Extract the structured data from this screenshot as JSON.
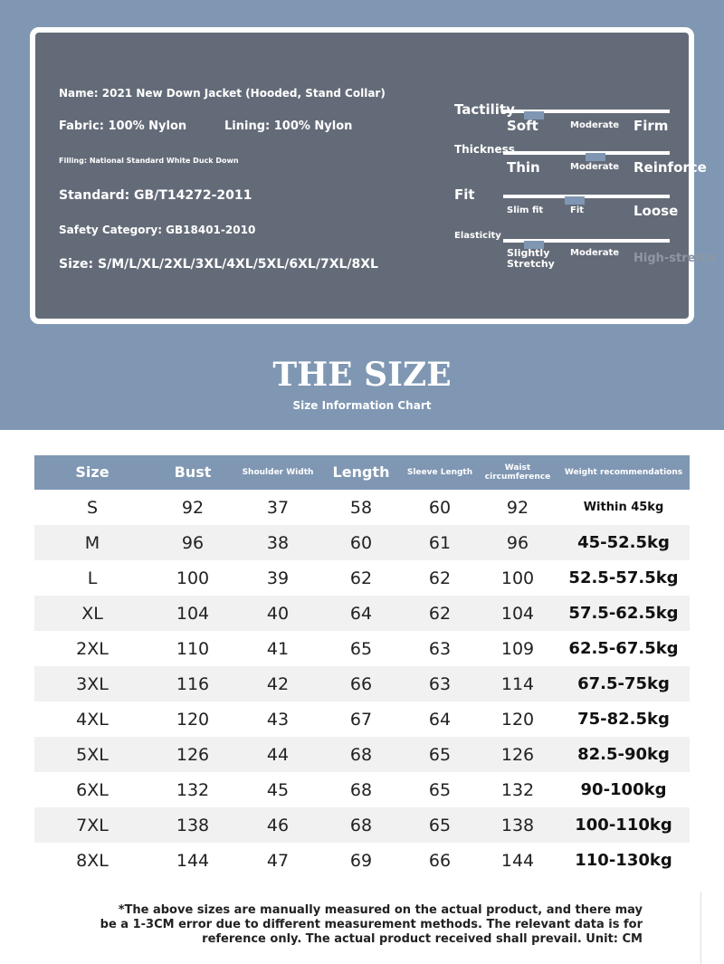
{
  "product": {
    "name": "Name: 2021 New Down Jacket (Hooded, Stand Collar)",
    "fabric": "Fabric: 100% Nylon",
    "lining": "Lining: 100% Nylon",
    "filling": "Filling: National Standard White Duck Down",
    "standard": "Standard: GB/T14272-2011",
    "safety": "Safety Category: GB18401-2010",
    "size": "Size: S/M/L/XL/2XL/3XL/4XL/5XL/6XL/7XL/8XL"
  },
  "attributes": [
    {
      "label": "Tactility",
      "options": [
        "Soft",
        "Moderate",
        "Firm"
      ]
    },
    {
      "label": "Thickness",
      "options": [
        "Thin",
        "Moderate",
        "Reinforce"
      ]
    },
    {
      "label": "Fit",
      "options": [
        "Slim fit",
        "Fit",
        "Loose"
      ]
    },
    {
      "label": "Elasticity",
      "options": [
        "Slightly Stretchy",
        "Moderate",
        "High-stretch"
      ]
    }
  ],
  "heading": {
    "title": "THE SIZE",
    "subtitle": "Size Information Chart"
  },
  "table": {
    "headers": [
      "Size",
      "Bust",
      "Shoulder Width",
      "Length",
      "Sleeve Length",
      "Waist circumference",
      "Weight recommendations"
    ],
    "rows": [
      [
        "S",
        92,
        37,
        58,
        60,
        92,
        "Within 45kg"
      ],
      [
        "M",
        96,
        38,
        60,
        61,
        96,
        "45-52.5kg"
      ],
      [
        "L",
        100,
        39,
        62,
        62,
        100,
        "52.5-57.5kg"
      ],
      [
        "XL",
        104,
        40,
        64,
        62,
        104,
        "57.5-62.5kg"
      ],
      [
        "2XL",
        110,
        41,
        65,
        63,
        109,
        "62.5-67.5kg"
      ],
      [
        "3XL",
        116,
        42,
        66,
        63,
        114,
        "67.5-75kg"
      ],
      [
        "4XL",
        120,
        43,
        67,
        64,
        120,
        "75-82.5kg"
      ],
      [
        "5XL",
        126,
        44,
        68,
        65,
        126,
        "82.5-90kg"
      ],
      [
        "6XL",
        132,
        45,
        68,
        65,
        132,
        "90-100kg"
      ],
      [
        "7XL",
        138,
        46,
        68,
        65,
        138,
        "100-110kg"
      ],
      [
        "8XL",
        144,
        47,
        69,
        66,
        144,
        "110-130kg"
      ]
    ]
  },
  "note": "*The above sizes are manually measured on the actual product, and there may be a 1-3CM error due to different measurement methods. The relevant data is for reference only. The actual product received shall prevail. Unit: CM"
}
